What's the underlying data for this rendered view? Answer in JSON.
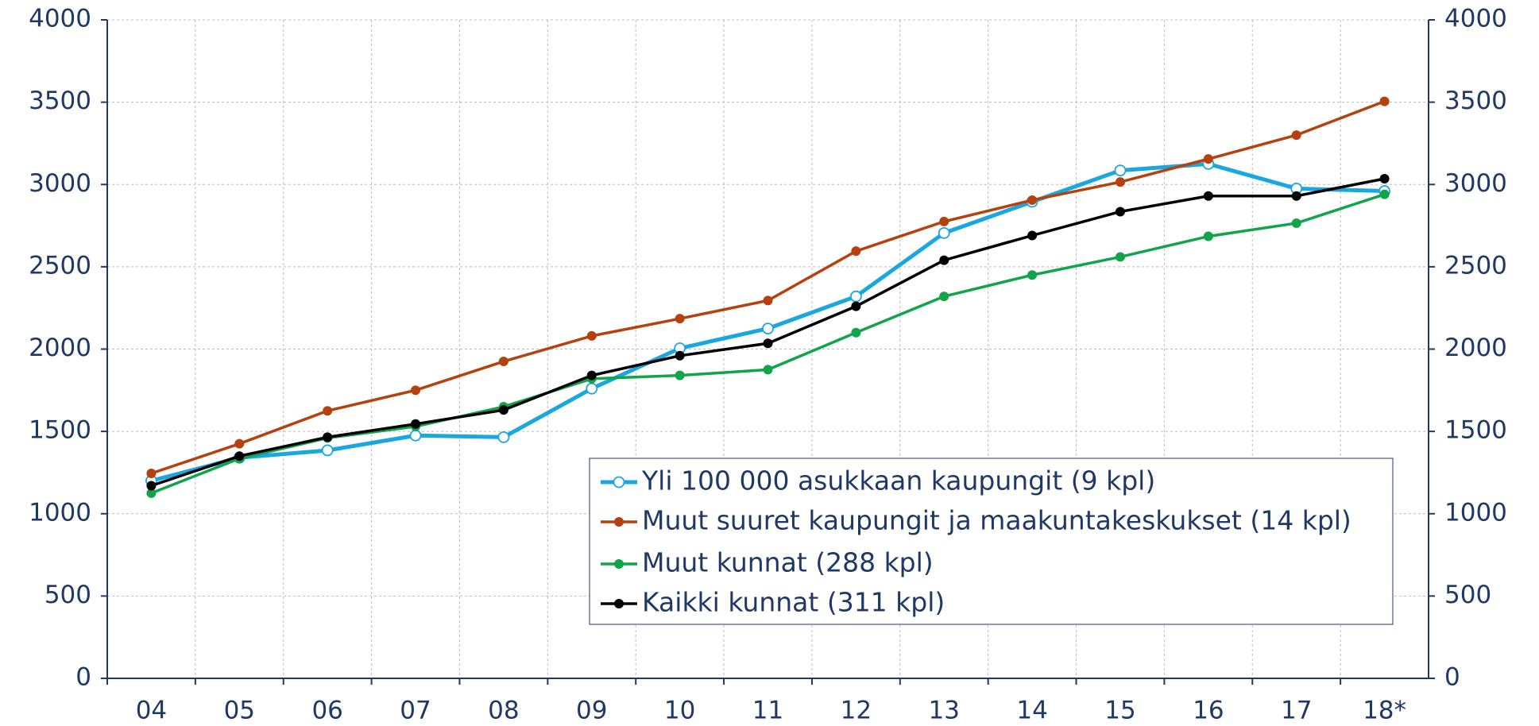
{
  "chart_data": {
    "type": "line",
    "categories": [
      "04",
      "05",
      "06",
      "07",
      "08",
      "09",
      "10",
      "11",
      "12",
      "13",
      "14",
      "15",
      "16",
      "17",
      "18*"
    ],
    "series": [
      {
        "name": "Yli 100 000 asukkaan kaupungit (9 kpl)",
        "color": "#1aa7e0",
        "hollow": true,
        "values": [
          1200,
          1340,
          1385,
          1475,
          1465,
          1760,
          2005,
          2125,
          2320,
          2705,
          2895,
          3085,
          3125,
          2975,
          2960
        ]
      },
      {
        "name": "Muut suuret kaupungit ja maakuntakeskukset (14 kpl)",
        "color": "#b5420e",
        "values": [
          1245,
          1425,
          1625,
          1750,
          1925,
          2080,
          2185,
          2295,
          2595,
          2775,
          2905,
          3015,
          3155,
          3300,
          3505
        ]
      },
      {
        "name": "Muut kunnat (288 kpl)",
        "color": "#11a44a",
        "values": [
          1125,
          1335,
          1460,
          1530,
          1650,
          1820,
          1840,
          1875,
          2100,
          2320,
          2450,
          2560,
          2685,
          2765,
          2940
        ]
      },
      {
        "name": "Kaikki kunnat (311 kpl)",
        "color": "#000000",
        "values": [
          1170,
          1350,
          1465,
          1545,
          1630,
          1840,
          1960,
          2035,
          2260,
          2540,
          2690,
          2835,
          2930,
          2930,
          3035
        ]
      }
    ],
    "ylim": [
      0,
      4000
    ],
    "yticks": [
      0,
      500,
      1000,
      1500,
      2000,
      2500,
      3000,
      3500,
      4000
    ],
    "y2lim": [
      0,
      4000
    ],
    "y2ticks": [
      0,
      500,
      1000,
      1500,
      2000,
      2500,
      3000,
      3500,
      4000
    ],
    "grid": true
  }
}
